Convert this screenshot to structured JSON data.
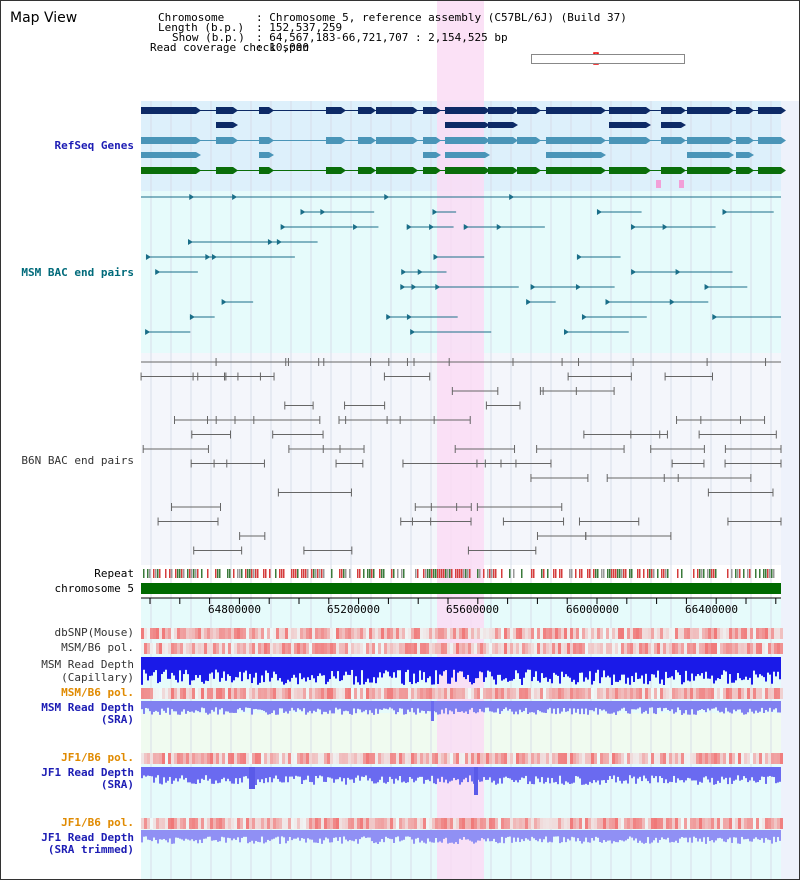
{
  "header": {
    "title": "Map View",
    "chromosome_label": "Chromosome",
    "chromosome_value": ": Chromosome 5, reference assembly (C57BL/6J) (Build 37)",
    "length_label": "Length (b.p.)",
    "length_value": ": 152,537,259",
    "show_label": "Show (b.p.)",
    "show_value": ": 64,567,183-66,721,707 : 2,154,525 bp",
    "coverage_label": "Read coverage check span",
    "coverage_value": ": 10,000"
  },
  "tracks": {
    "refseq": "RefSeq Genes",
    "msm_bac": "MSM BAC end pairs",
    "b6n_bac": "B6N BAC end pairs",
    "repeat": "Repeat",
    "chromosome": "chromosome 5",
    "dbsnp": "dbSNP(Mouse)",
    "msm_b6_pol_1": "MSM/B6 pol.",
    "msm_depth_cap_1": "MSM Read Depth",
    "msm_depth_cap_2": "(Capillary)",
    "msm_b6_pol_2": "MSM/B6 pol.",
    "msm_depth_sra_1": "MSM Read Depth",
    "msm_depth_sra_2": "(SRA)",
    "jf1_b6_pol_1": "JF1/B6 pol.",
    "jf1_depth_sra_1": "JF1 Read Depth",
    "jf1_depth_sra_2": "(SRA)",
    "jf1_b6_pol_2": "JF1/B6 pol.",
    "jf1_depth_trim_1": "JF1 Read Depth",
    "jf1_depth_trim_2": "(SRA trimmed)"
  },
  "axis": {
    "ticks": [
      "64800000",
      "65200000",
      "65600000",
      "66000000",
      "66400000"
    ]
  },
  "colors": {
    "refseq_bg": "#ddf0fb",
    "msm_bac_bg": "#e6fbfb",
    "b6n_bac_bg": "#f4f6fb",
    "highlight": "#fadcf4",
    "refseq_navy": "#0d2a66",
    "refseq_steel": "#4a95b8",
    "refseq_green": "#0a6e0a",
    "msm_line": "#1a6e88",
    "b6n_line": "#666666",
    "label_navy": "#1c1cb4",
    "label_orange": "#e08a00",
    "label_teal": "#006a7a",
    "chromosome_bar": "#006a00"
  }
}
